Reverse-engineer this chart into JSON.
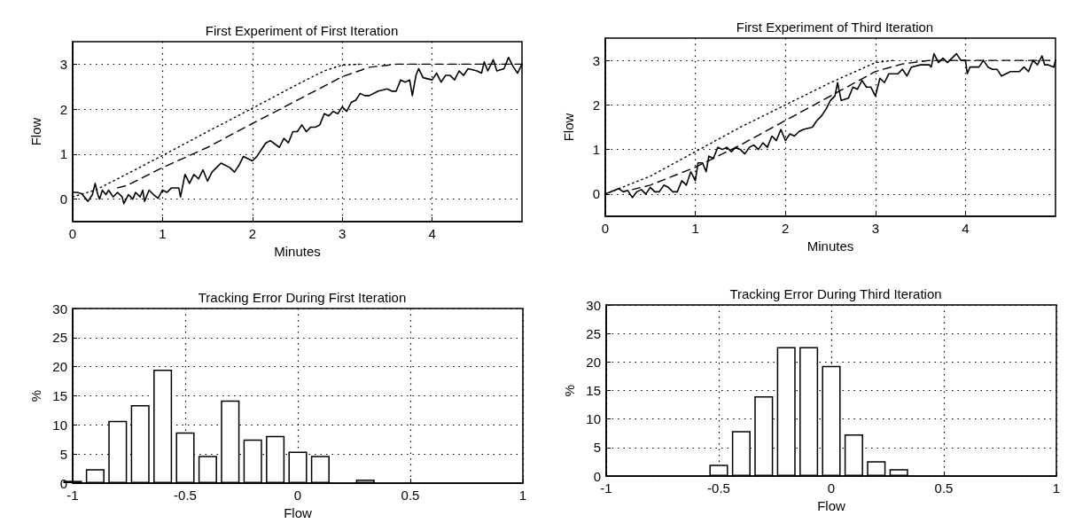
{
  "chart_data": [
    {
      "type": "line",
      "title": "First Experiment of First Iteration",
      "xlabel": "Minutes",
      "ylabel": "Flow",
      "xlim": [
        0,
        5
      ],
      "ylim": [
        -0.5,
        3.5
      ],
      "xticks": [
        0,
        1,
        2,
        3,
        4
      ],
      "yticks": [
        0,
        1,
        2,
        3
      ],
      "grid": true,
      "marker": "none",
      "series": [
        {
          "color": "#000000",
          "line_style": "dotted",
          "x": [
            0,
            0.25,
            0.5,
            1,
            1.5,
            2,
            2.5,
            2.8,
            3,
            3.2
          ],
          "values": [
            0.05,
            0.2,
            0.45,
            0.97,
            1.5,
            2.02,
            2.55,
            2.85,
            2.98,
            3.0
          ]
        },
        {
          "color": "#000000",
          "line_style": "dashed",
          "x": [
            0.5,
            0.6,
            1,
            1.5,
            2,
            2.5,
            3,
            3.3,
            3.6,
            5
          ],
          "values": [
            0.25,
            0.3,
            0.7,
            1.15,
            1.68,
            2.2,
            2.72,
            2.93,
            3.0,
            3.0
          ]
        },
        {
          "color": "#000000",
          "line_style": "solid",
          "x": [
            0,
            0.05,
            0.1,
            0.15,
            0.17,
            0.22,
            0.25,
            0.28,
            0.3,
            0.33,
            0.37,
            0.4,
            0.45,
            0.5,
            0.55,
            0.57,
            0.62,
            0.67,
            0.7,
            0.75,
            0.78,
            0.8,
            0.85,
            0.9,
            0.95,
            1.0,
            1.05,
            1.1,
            1.18,
            1.2,
            1.25,
            1.3,
            1.35,
            1.4,
            1.45,
            1.5,
            1.55,
            1.6,
            1.65,
            1.7,
            1.75,
            1.8,
            1.85,
            1.9,
            1.95,
            2.0,
            2.05,
            2.1,
            2.15,
            2.2,
            2.3,
            2.35,
            2.4,
            2.45,
            2.5,
            2.55,
            2.6,
            2.65,
            2.7,
            2.75,
            2.8,
            2.85,
            2.9,
            2.95,
            3.0,
            3.05,
            3.1,
            3.15,
            3.2,
            3.25,
            3.3,
            3.4,
            3.5,
            3.55,
            3.6,
            3.65,
            3.7,
            3.75,
            3.78,
            3.82,
            3.85,
            3.9,
            4.0,
            4.05,
            4.1,
            4.15,
            4.2,
            4.25,
            4.3,
            4.35,
            4.4,
            4.5,
            4.55,
            4.58,
            4.62,
            4.68,
            4.72,
            4.8,
            4.85,
            4.9,
            4.95,
            5.0
          ],
          "values": [
            0.15,
            0.15,
            0.12,
            0.0,
            -0.05,
            0.1,
            0.35,
            0.1,
            0.0,
            0.2,
            0.1,
            0.2,
            0.05,
            0.15,
            0.05,
            -0.1,
            0.1,
            0.0,
            0.15,
            0.05,
            0.2,
            -0.05,
            0.2,
            0.1,
            0.02,
            0.2,
            0.15,
            0.25,
            0.25,
            0.05,
            0.55,
            0.35,
            0.55,
            0.45,
            0.65,
            0.4,
            0.6,
            0.7,
            0.8,
            0.75,
            0.7,
            0.6,
            0.75,
            0.95,
            0.9,
            0.85,
            0.95,
            1.1,
            1.25,
            1.3,
            1.15,
            1.35,
            1.25,
            1.5,
            1.5,
            1.65,
            1.5,
            1.6,
            1.6,
            1.65,
            1.9,
            1.85,
            1.95,
            1.9,
            2.05,
            1.95,
            2.15,
            2.2,
            2.35,
            2.3,
            2.3,
            2.4,
            2.45,
            2.4,
            2.4,
            2.65,
            2.6,
            2.65,
            2.3,
            2.75,
            2.9,
            2.7,
            2.65,
            2.8,
            2.6,
            2.75,
            2.75,
            2.65,
            2.85,
            2.75,
            2.9,
            2.85,
            2.8,
            3.05,
            2.85,
            3.1,
            2.85,
            2.9,
            3.15,
            2.95,
            2.8,
            3.0
          ]
        }
      ]
    },
    {
      "type": "line",
      "title": "First Experiment of Third Iteration",
      "xlabel": "Minutes",
      "ylabel": "Flow",
      "xlim": [
        0,
        5
      ],
      "ylim": [
        -0.5,
        3.5
      ],
      "xticks": [
        0,
        1,
        2,
        3,
        4
      ],
      "yticks": [
        0,
        1,
        2,
        3
      ],
      "grid": true,
      "marker": "none",
      "series": [
        {
          "color": "#000000",
          "line_style": "dotted",
          "x": [
            0,
            0.5,
            1,
            1.5,
            2,
            2.5,
            3,
            3.2
          ],
          "values": [
            0,
            0.4,
            0.95,
            1.5,
            2.0,
            2.5,
            2.95,
            3.0
          ]
        },
        {
          "color": "#000000",
          "line_style": "dashed",
          "x": [
            0.3,
            0.5,
            1,
            1.5,
            2,
            2.5,
            3,
            3.3,
            3.6,
            5
          ],
          "values": [
            0.1,
            0.2,
            0.6,
            1.1,
            1.65,
            2.2,
            2.75,
            2.92,
            3.0,
            3.0
          ]
        },
        {
          "color": "#000000",
          "line_style": "solid",
          "x": [
            0,
            0.1,
            0.15,
            0.2,
            0.25,
            0.3,
            0.35,
            0.4,
            0.45,
            0.5,
            0.55,
            0.6,
            0.65,
            0.7,
            0.75,
            0.8,
            0.85,
            0.9,
            0.95,
            1.0,
            1.03,
            1.08,
            1.12,
            1.15,
            1.2,
            1.25,
            1.3,
            1.35,
            1.4,
            1.45,
            1.5,
            1.55,
            1.6,
            1.65,
            1.7,
            1.75,
            1.8,
            1.85,
            1.9,
            1.95,
            2.0,
            2.05,
            2.1,
            2.15,
            2.2,
            2.3,
            2.35,
            2.4,
            2.45,
            2.5,
            2.55,
            2.58,
            2.62,
            2.7,
            2.75,
            2.8,
            2.85,
            2.9,
            2.95,
            3.0,
            3.05,
            3.1,
            3.15,
            3.25,
            3.3,
            3.35,
            3.4,
            3.5,
            3.6,
            3.62,
            3.65,
            3.7,
            3.75,
            3.8,
            3.85,
            3.9,
            3.95,
            4.0,
            4.02,
            4.05,
            4.15,
            4.2,
            4.25,
            4.3,
            4.35,
            4.4,
            4.5,
            4.6,
            4.65,
            4.7,
            4.75,
            4.8,
            4.85,
            4.88,
            4.92,
            4.98,
            5.0
          ],
          "values": [
            0.0,
            0.08,
            0.12,
            0.05,
            0.08,
            -0.08,
            0.05,
            0.1,
            0.0,
            0.15,
            0.05,
            0.05,
            0.2,
            0.15,
            0.05,
            0.05,
            0.3,
            0.2,
            0.5,
            0.3,
            0.7,
            0.7,
            0.5,
            0.85,
            0.8,
            1.05,
            1.0,
            1.05,
            0.95,
            1.05,
            1.0,
            0.9,
            1.05,
            1.1,
            1.0,
            1.15,
            1.05,
            1.3,
            1.2,
            1.45,
            1.2,
            1.35,
            1.3,
            1.4,
            1.45,
            1.5,
            1.65,
            1.75,
            1.9,
            2.1,
            2.2,
            2.5,
            2.1,
            2.15,
            2.4,
            2.35,
            2.55,
            2.4,
            2.4,
            2.2,
            2.6,
            2.5,
            2.7,
            2.7,
            2.8,
            2.65,
            2.85,
            2.9,
            2.9,
            2.85,
            3.15,
            2.95,
            3.05,
            2.95,
            3.05,
            3.15,
            3.0,
            3.0,
            2.7,
            2.85,
            2.85,
            3.0,
            2.85,
            2.8,
            2.8,
            2.65,
            2.75,
            2.75,
            2.85,
            2.75,
            3.0,
            2.9,
            3.1,
            2.9,
            2.9,
            2.85,
            3.0
          ]
        }
      ]
    },
    {
      "type": "bar",
      "title": "Tracking Error During First Iteration",
      "xlabel": "Flow",
      "ylabel": "%",
      "xlim": [
        -1,
        1
      ],
      "ylim": [
        0,
        30
      ],
      "xticks": [
        -1,
        -0.5,
        0,
        0.5,
        1
      ],
      "yticks": [
        0,
        5,
        10,
        15,
        20,
        25,
        30
      ],
      "grid": true,
      "series": [
        {
          "color": "#ffffff",
          "x": [
            -1.0,
            -0.9,
            -0.8,
            -0.7,
            -0.6,
            -0.5,
            -0.4,
            -0.3,
            -0.2,
            -0.1,
            0.0,
            0.1,
            0.3
          ],
          "values": [
            0.4,
            2.4,
            10.7,
            13.4,
            19.5,
            8.7,
            4.7,
            14.2,
            7.5,
            8.1,
            5.4,
            4.7,
            0.6
          ]
        }
      ]
    },
    {
      "type": "bar",
      "title": "Tracking Error During Third Iteration",
      "xlabel": "Flow",
      "ylabel": "%",
      "xlim": [
        -1,
        1
      ],
      "ylim": [
        0,
        30
      ],
      "xticks": [
        -1,
        -0.5,
        0,
        0.5,
        1
      ],
      "yticks": [
        0,
        5,
        10,
        15,
        20,
        25,
        30
      ],
      "grid": true,
      "series": [
        {
          "color": "#ffffff",
          "x": [
            -0.5,
            -0.4,
            -0.3,
            -0.2,
            -0.1,
            0.0,
            0.1,
            0.2,
            0.3
          ],
          "values": [
            2.0,
            7.9,
            14.0,
            22.6,
            22.6,
            19.3,
            7.3,
            2.6,
            1.2
          ]
        }
      ]
    }
  ]
}
